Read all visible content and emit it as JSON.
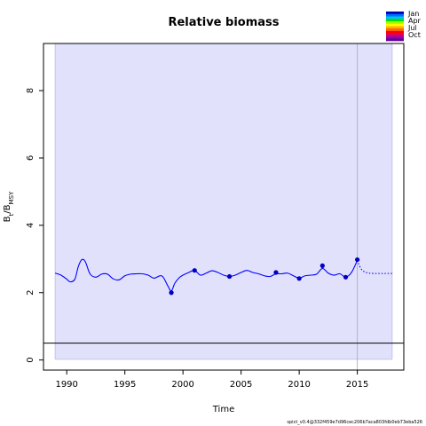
{
  "chart_data": {
    "type": "line",
    "title": "Relative biomass",
    "xlabel": "Time",
    "ylabel": "B_t/B_MSY",
    "ylabel_main": "B",
    "ylabel_sub1": "t",
    "ylabel_slash": "/B",
    "ylabel_sub2": "MSY",
    "xlim": [
      1988,
      2019
    ],
    "ylim": [
      -0.3,
      9.4
    ],
    "xticks": [
      1990,
      1995,
      2000,
      2005,
      2010,
      2015
    ],
    "yticks": [
      0,
      2,
      4,
      6,
      8
    ],
    "ci_band": {
      "x": [
        1989,
        2018
      ],
      "lower": [
        0.02,
        0.02
      ],
      "upper": [
        9.4,
        9.4
      ]
    },
    "reference_line_y": 0.5,
    "vertical_line_x": 2015,
    "estimate_line": {
      "x": [
        1989,
        1989.5,
        1990,
        1990.3,
        1990.7,
        1991,
        1991.3,
        1991.6,
        1992,
        1992.5,
        1993,
        1993.5,
        1994,
        1994.5,
        1995,
        1995.5,
        1996,
        1996.5,
        1997,
        1997.5,
        1998,
        1998.3,
        1998.7,
        1999,
        1999.3,
        1999.7,
        2000,
        2000.5,
        2001,
        2001.5,
        2002,
        2002.5,
        2003,
        2003.5,
        2004,
        2004.5,
        2005,
        2005.5,
        2006,
        2006.5,
        2007,
        2007.5,
        2008,
        2008.5,
        2009,
        2009.5,
        2010,
        2010.5,
        2011,
        2011.5,
        2012,
        2012.5,
        2013,
        2013.5,
        2014,
        2014.5,
        2015
      ],
      "y": [
        2.58,
        2.52,
        2.4,
        2.32,
        2.4,
        2.78,
        2.98,
        2.92,
        2.56,
        2.46,
        2.55,
        2.55,
        2.41,
        2.38,
        2.5,
        2.55,
        2.56,
        2.56,
        2.52,
        2.43,
        2.5,
        2.46,
        2.2,
        2.05,
        2.28,
        2.45,
        2.52,
        2.6,
        2.66,
        2.52,
        2.58,
        2.65,
        2.6,
        2.52,
        2.48,
        2.52,
        2.6,
        2.66,
        2.6,
        2.56,
        2.5,
        2.48,
        2.56,
        2.56,
        2.58,
        2.5,
        2.43,
        2.5,
        2.52,
        2.55,
        2.72,
        2.58,
        2.52,
        2.56,
        2.46,
        2.6,
        2.96
      ]
    },
    "forecast_line": {
      "x": [
        2015,
        2015.3,
        2015.6,
        2016,
        2016.5,
        2017,
        2017.5,
        2018
      ],
      "y": [
        2.96,
        2.72,
        2.62,
        2.58,
        2.57,
        2.57,
        2.57,
        2.57
      ]
    },
    "observations": {
      "x": [
        1999,
        2001,
        2004,
        2008,
        2010,
        2012,
        2014,
        2015
      ],
      "y": [
        2.0,
        2.66,
        2.48,
        2.6,
        2.42,
        2.8,
        2.46,
        2.98
      ]
    },
    "legend": {
      "position": "top-right",
      "entries": [
        "Jan",
        "Apr",
        "Jul",
        "Oct"
      ],
      "colors": [
        "#0000b0",
        "#0070ff",
        "#00c0ff",
        "#00e000",
        "#a0ff00",
        "#ffff00",
        "#ffb000",
        "#ff6000",
        "#ff0000",
        "#e00060",
        "#a000a0",
        "#6000a0"
      ]
    },
    "grid": false,
    "colors": {
      "band_fill": "#e1e1fc",
      "line": "#0000ff",
      "points": "#0000c0",
      "reference": "#000000",
      "vline": "#aaaaaa"
    }
  },
  "footnote": "spict_v0.4@332f459e7d96cec206b7aca803fdb0eb73eba526"
}
